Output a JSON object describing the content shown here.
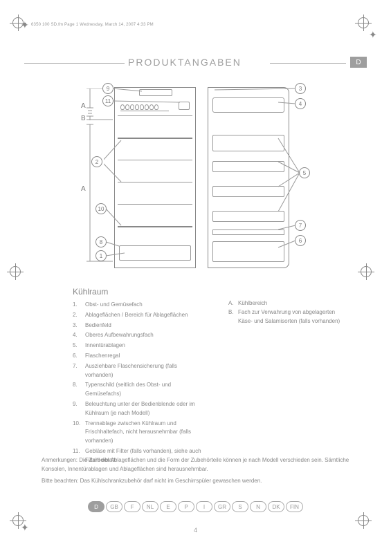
{
  "header": "6350 100 SD.fm  Page 1  Wednesday, March 14, 2007  4:33 PM",
  "title": "PRODUKTANGABEN",
  "lang_badge": "D",
  "section_heading": "Kühlraum",
  "callouts": {
    "c1": "1",
    "c2": "2",
    "c3": "3",
    "c4": "4",
    "c5": "5",
    "c6": "6",
    "c7": "7",
    "c8": "8",
    "c9": "9",
    "c10": "10",
    "c11": "11",
    "A": "A",
    "B": "B"
  },
  "list": [
    "Obst- und Gemüsefach",
    "Ablageflächen / Bereich für Ablageflächen",
    "Bedienfeld",
    "Oberes Aufbewahrungsfach",
    "Innentürablagen",
    "Flaschenregal",
    "Ausziehbare Flaschensicherung (falls vorhanden)",
    "Typenschild (seitlich des Obst- und Gemüsefachs)",
    "Beleuchtung unter der Bedienblende oder im Kühlraum (je nach Modell)",
    "Trennablage zwischen Kühlraum und Frischhaltefach, nicht herausnehmbar (falls vorhanden)",
    "Gebläse mit Filter (falls vorhanden), siehe auch Filterbeiblatt"
  ],
  "right_list": {
    "A": "Kühlbereich",
    "B": "Fach zur Verwahrung von abgelagerten Käse- und Salamisorten (falls vorhanden)"
  },
  "notes": {
    "n1": "Anmerkungen: Die Zahl der Ablageflächen und die Form der Zubehörteile können je nach Modell verschieden sein. Sämtliche Konsolen, Innentürablagen und Ablageflächen sind herausnehmbar.",
    "n2": "Bitte beachten: Das Kühlschrankzubehör darf nicht im Geschirrspüler gewaschen werden."
  },
  "languages": [
    "D",
    "GB",
    "F",
    "NL",
    "E",
    "P",
    "I",
    "GR",
    "S",
    "N",
    "DK",
    "FIN"
  ],
  "page_number": "4",
  "colors": {
    "text": "#888888",
    "rule": "#aaaaaa",
    "badge": "#9e9e9e"
  }
}
